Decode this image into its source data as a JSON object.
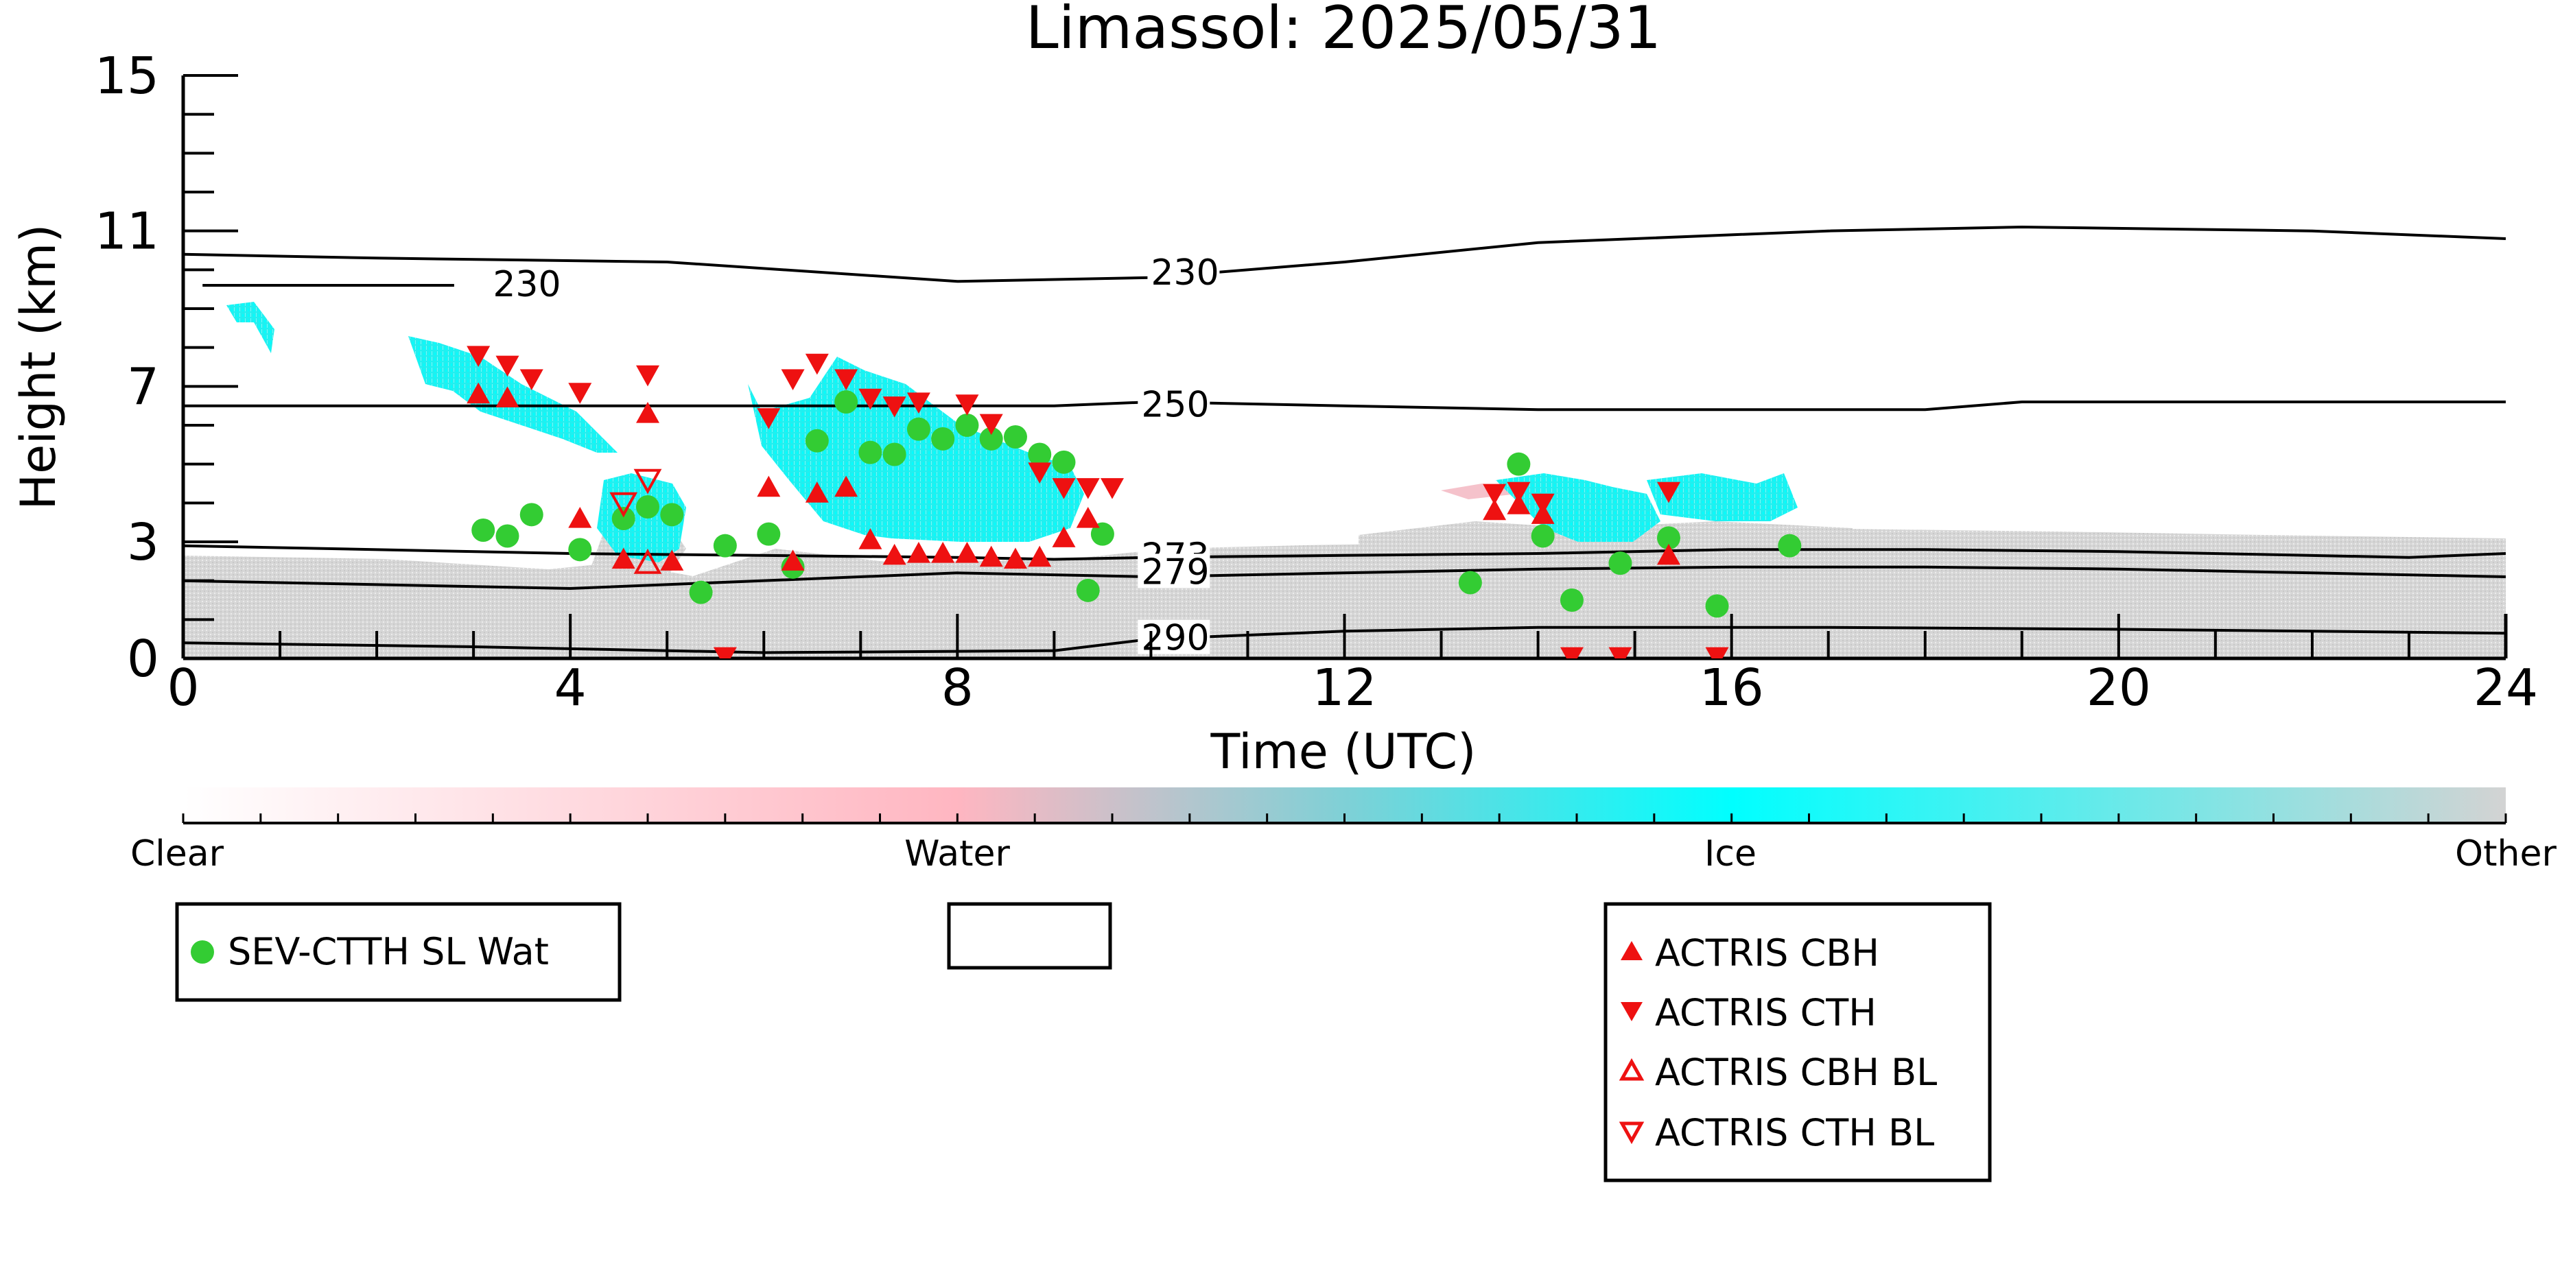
{
  "chart_data": {
    "type": "scatter",
    "title": "Limassol: 2025/05/31",
    "xlabel": "Time (UTC)",
    "ylabel": "Height (km)",
    "xlim": [
      0,
      24
    ],
    "ylim": [
      0,
      15
    ],
    "xticks": [
      0,
      4,
      8,
      12,
      16,
      20,
      24
    ],
    "yticks": [
      0,
      3,
      7,
      11,
      15
    ],
    "grid": false,
    "colorbar": {
      "labels": [
        "Clear",
        "Water",
        "Ice",
        "Other"
      ],
      "colors": [
        "#ffffff",
        "#ffb6c1",
        "#00ffff",
        "#d3d3d3"
      ]
    },
    "legends": [
      {
        "entries": [
          {
            "label": "SEV-CTTH SL Wat",
            "marker": "circle",
            "color": "#33cc33"
          }
        ]
      },
      {
        "entries": []
      },
      {
        "entries": [
          {
            "label": "ACTRIS CBH",
            "marker": "triangle-up",
            "color": "#ee1111"
          },
          {
            "label": "ACTRIS CTH",
            "marker": "triangle-down",
            "color": "#ee1111"
          },
          {
            "label": "ACTRIS CBH BL",
            "marker": "triangle-up-open",
            "color": "#ee1111"
          },
          {
            "label": "ACTRIS CTH BL",
            "marker": "triangle-down-open",
            "color": "#ee1111"
          }
        ]
      }
    ],
    "contours": [
      {
        "label": "230",
        "label_at": [
          10,
          9.9
        ],
        "points": [
          [
            0,
            10.4
          ],
          [
            2,
            10.3
          ],
          [
            5,
            10.2
          ],
          [
            8,
            9.7
          ],
          [
            10,
            9.8
          ],
          [
            12,
            10.2
          ],
          [
            14,
            10.7
          ],
          [
            17,
            11.0
          ],
          [
            19,
            11.1
          ],
          [
            22,
            11.0
          ],
          [
            24,
            10.8
          ]
        ]
      },
      {
        "label": "230",
        "label_at": [
          3.2,
          9.6
        ],
        "points": [
          [
            0.2,
            9.6
          ],
          [
            1.5,
            9.6
          ],
          [
            2.8,
            9.6
          ]
        ]
      },
      {
        "label": "250",
        "label_at": [
          9.9,
          6.5
        ],
        "points": [
          [
            0,
            6.5
          ],
          [
            3,
            6.5
          ],
          [
            6,
            6.5
          ],
          [
            9,
            6.5
          ],
          [
            10,
            6.6
          ],
          [
            12,
            6.5
          ],
          [
            14,
            6.4
          ],
          [
            16,
            6.4
          ],
          [
            18,
            6.4
          ],
          [
            19,
            6.6
          ],
          [
            24,
            6.6
          ]
        ]
      },
      {
        "label": "273",
        "label_at": [
          9.9,
          2.6
        ],
        "points": [
          [
            0,
            2.9
          ],
          [
            4,
            2.7
          ],
          [
            8,
            2.6
          ],
          [
            9,
            2.55
          ],
          [
            10,
            2.6
          ],
          [
            12,
            2.65
          ],
          [
            14,
            2.7
          ],
          [
            16,
            2.8
          ],
          [
            18,
            2.8
          ],
          [
            20,
            2.75
          ],
          [
            23,
            2.6
          ],
          [
            24,
            2.7
          ]
        ]
      },
      {
        "label": "279",
        "label_at": [
          9.9,
          2.2
        ],
        "points": [
          [
            0,
            2.0
          ],
          [
            4,
            1.8
          ],
          [
            8,
            2.2
          ],
          [
            10,
            2.1
          ],
          [
            12,
            2.2
          ],
          [
            14,
            2.3
          ],
          [
            16,
            2.35
          ],
          [
            18,
            2.35
          ],
          [
            20,
            2.3
          ],
          [
            22,
            2.2
          ],
          [
            24,
            2.1
          ]
        ]
      },
      {
        "label": "290",
        "label_at": [
          9.9,
          0.5
        ],
        "points": [
          [
            0,
            0.4
          ],
          [
            3,
            0.3
          ],
          [
            6,
            0.15
          ],
          [
            9,
            0.2
          ],
          [
            10,
            0.5
          ],
          [
            12,
            0.7
          ],
          [
            14,
            0.8
          ],
          [
            17,
            0.8
          ],
          [
            20,
            0.75
          ],
          [
            22,
            0.7
          ],
          [
            24,
            0.65
          ]
        ]
      }
    ],
    "series": [
      {
        "name": "SEV-CTTH SL Wat",
        "marker": "circle",
        "color": "#33cc33",
        "points": [
          [
            3.1,
            3.3
          ],
          [
            3.35,
            3.15
          ],
          [
            3.6,
            3.7
          ],
          [
            4.1,
            2.8
          ],
          [
            4.55,
            3.6
          ],
          [
            4.8,
            3.9
          ],
          [
            5.05,
            3.7
          ],
          [
            5.35,
            1.7
          ],
          [
            5.6,
            2.9
          ],
          [
            6.05,
            3.2
          ],
          [
            6.3,
            2.35
          ],
          [
            6.55,
            5.6
          ],
          [
            6.85,
            6.6
          ],
          [
            7.1,
            5.3
          ],
          [
            7.35,
            5.25
          ],
          [
            7.6,
            5.9
          ],
          [
            7.85,
            5.65
          ],
          [
            8.1,
            6.0
          ],
          [
            8.35,
            5.65
          ],
          [
            8.6,
            5.7
          ],
          [
            8.85,
            5.25
          ],
          [
            9.1,
            5.05
          ],
          [
            9.35,
            1.75
          ],
          [
            9.5,
            3.2
          ],
          [
            13.3,
            1.95
          ],
          [
            13.8,
            5.0
          ],
          [
            14.05,
            3.15
          ],
          [
            14.35,
            1.5
          ],
          [
            14.85,
            2.45
          ],
          [
            15.35,
            3.1
          ],
          [
            15.85,
            1.35
          ],
          [
            16.6,
            2.9
          ]
        ]
      },
      {
        "name": "ACTRIS CBH",
        "marker": "triangle-up",
        "color": "#ee1111",
        "points": [
          [
            3.05,
            6.8
          ],
          [
            3.35,
            6.7
          ],
          [
            4.1,
            3.6
          ],
          [
            4.55,
            2.55
          ],
          [
            4.8,
            6.3
          ],
          [
            5.05,
            2.5
          ],
          [
            6.05,
            4.4
          ],
          [
            6.3,
            2.5
          ],
          [
            6.55,
            4.25
          ],
          [
            6.85,
            4.4
          ],
          [
            7.1,
            3.05
          ],
          [
            7.35,
            2.65
          ],
          [
            7.6,
            2.7
          ],
          [
            7.85,
            2.7
          ],
          [
            8.1,
            2.7
          ],
          [
            8.35,
            2.6
          ],
          [
            8.6,
            2.55
          ],
          [
            8.85,
            2.6
          ],
          [
            9.1,
            3.1
          ],
          [
            9.35,
            3.6
          ],
          [
            13.55,
            3.8
          ],
          [
            13.8,
            3.95
          ],
          [
            14.05,
            3.7
          ],
          [
            15.35,
            2.65
          ]
        ]
      },
      {
        "name": "ACTRIS CTH",
        "marker": "triangle-down",
        "color": "#ee1111",
        "points": [
          [
            3.05,
            7.8
          ],
          [
            3.35,
            7.55
          ],
          [
            3.6,
            7.2
          ],
          [
            4.1,
            6.85
          ],
          [
            4.8,
            7.3
          ],
          [
            6.05,
            6.2
          ],
          [
            6.3,
            7.2
          ],
          [
            6.55,
            7.6
          ],
          [
            6.85,
            7.2
          ],
          [
            7.1,
            6.7
          ],
          [
            7.35,
            6.5
          ],
          [
            7.6,
            6.6
          ],
          [
            8.1,
            6.55
          ],
          [
            8.35,
            6.05
          ],
          [
            8.85,
            4.8
          ],
          [
            9.1,
            4.4
          ],
          [
            9.35,
            4.4
          ],
          [
            9.6,
            4.4
          ],
          [
            13.55,
            4.25
          ],
          [
            13.8,
            4.3
          ],
          [
            14.05,
            4.0
          ],
          [
            15.35,
            4.3
          ],
          [
            5.6,
            0.05
          ],
          [
            14.35,
            0.05
          ],
          [
            14.85,
            0.05
          ],
          [
            15.85,
            0.05
          ]
        ]
      },
      {
        "name": "ACTRIS CBH BL",
        "marker": "triangle-up-open",
        "color": "#ee1111",
        "points": [
          [
            4.8,
            2.45
          ]
        ]
      },
      {
        "name": "ACTRIS CTH BL",
        "marker": "triangle-down-open",
        "color": "#ee1111",
        "points": [
          [
            4.8,
            4.6
          ],
          [
            4.55,
            4.0
          ]
        ]
      }
    ]
  }
}
